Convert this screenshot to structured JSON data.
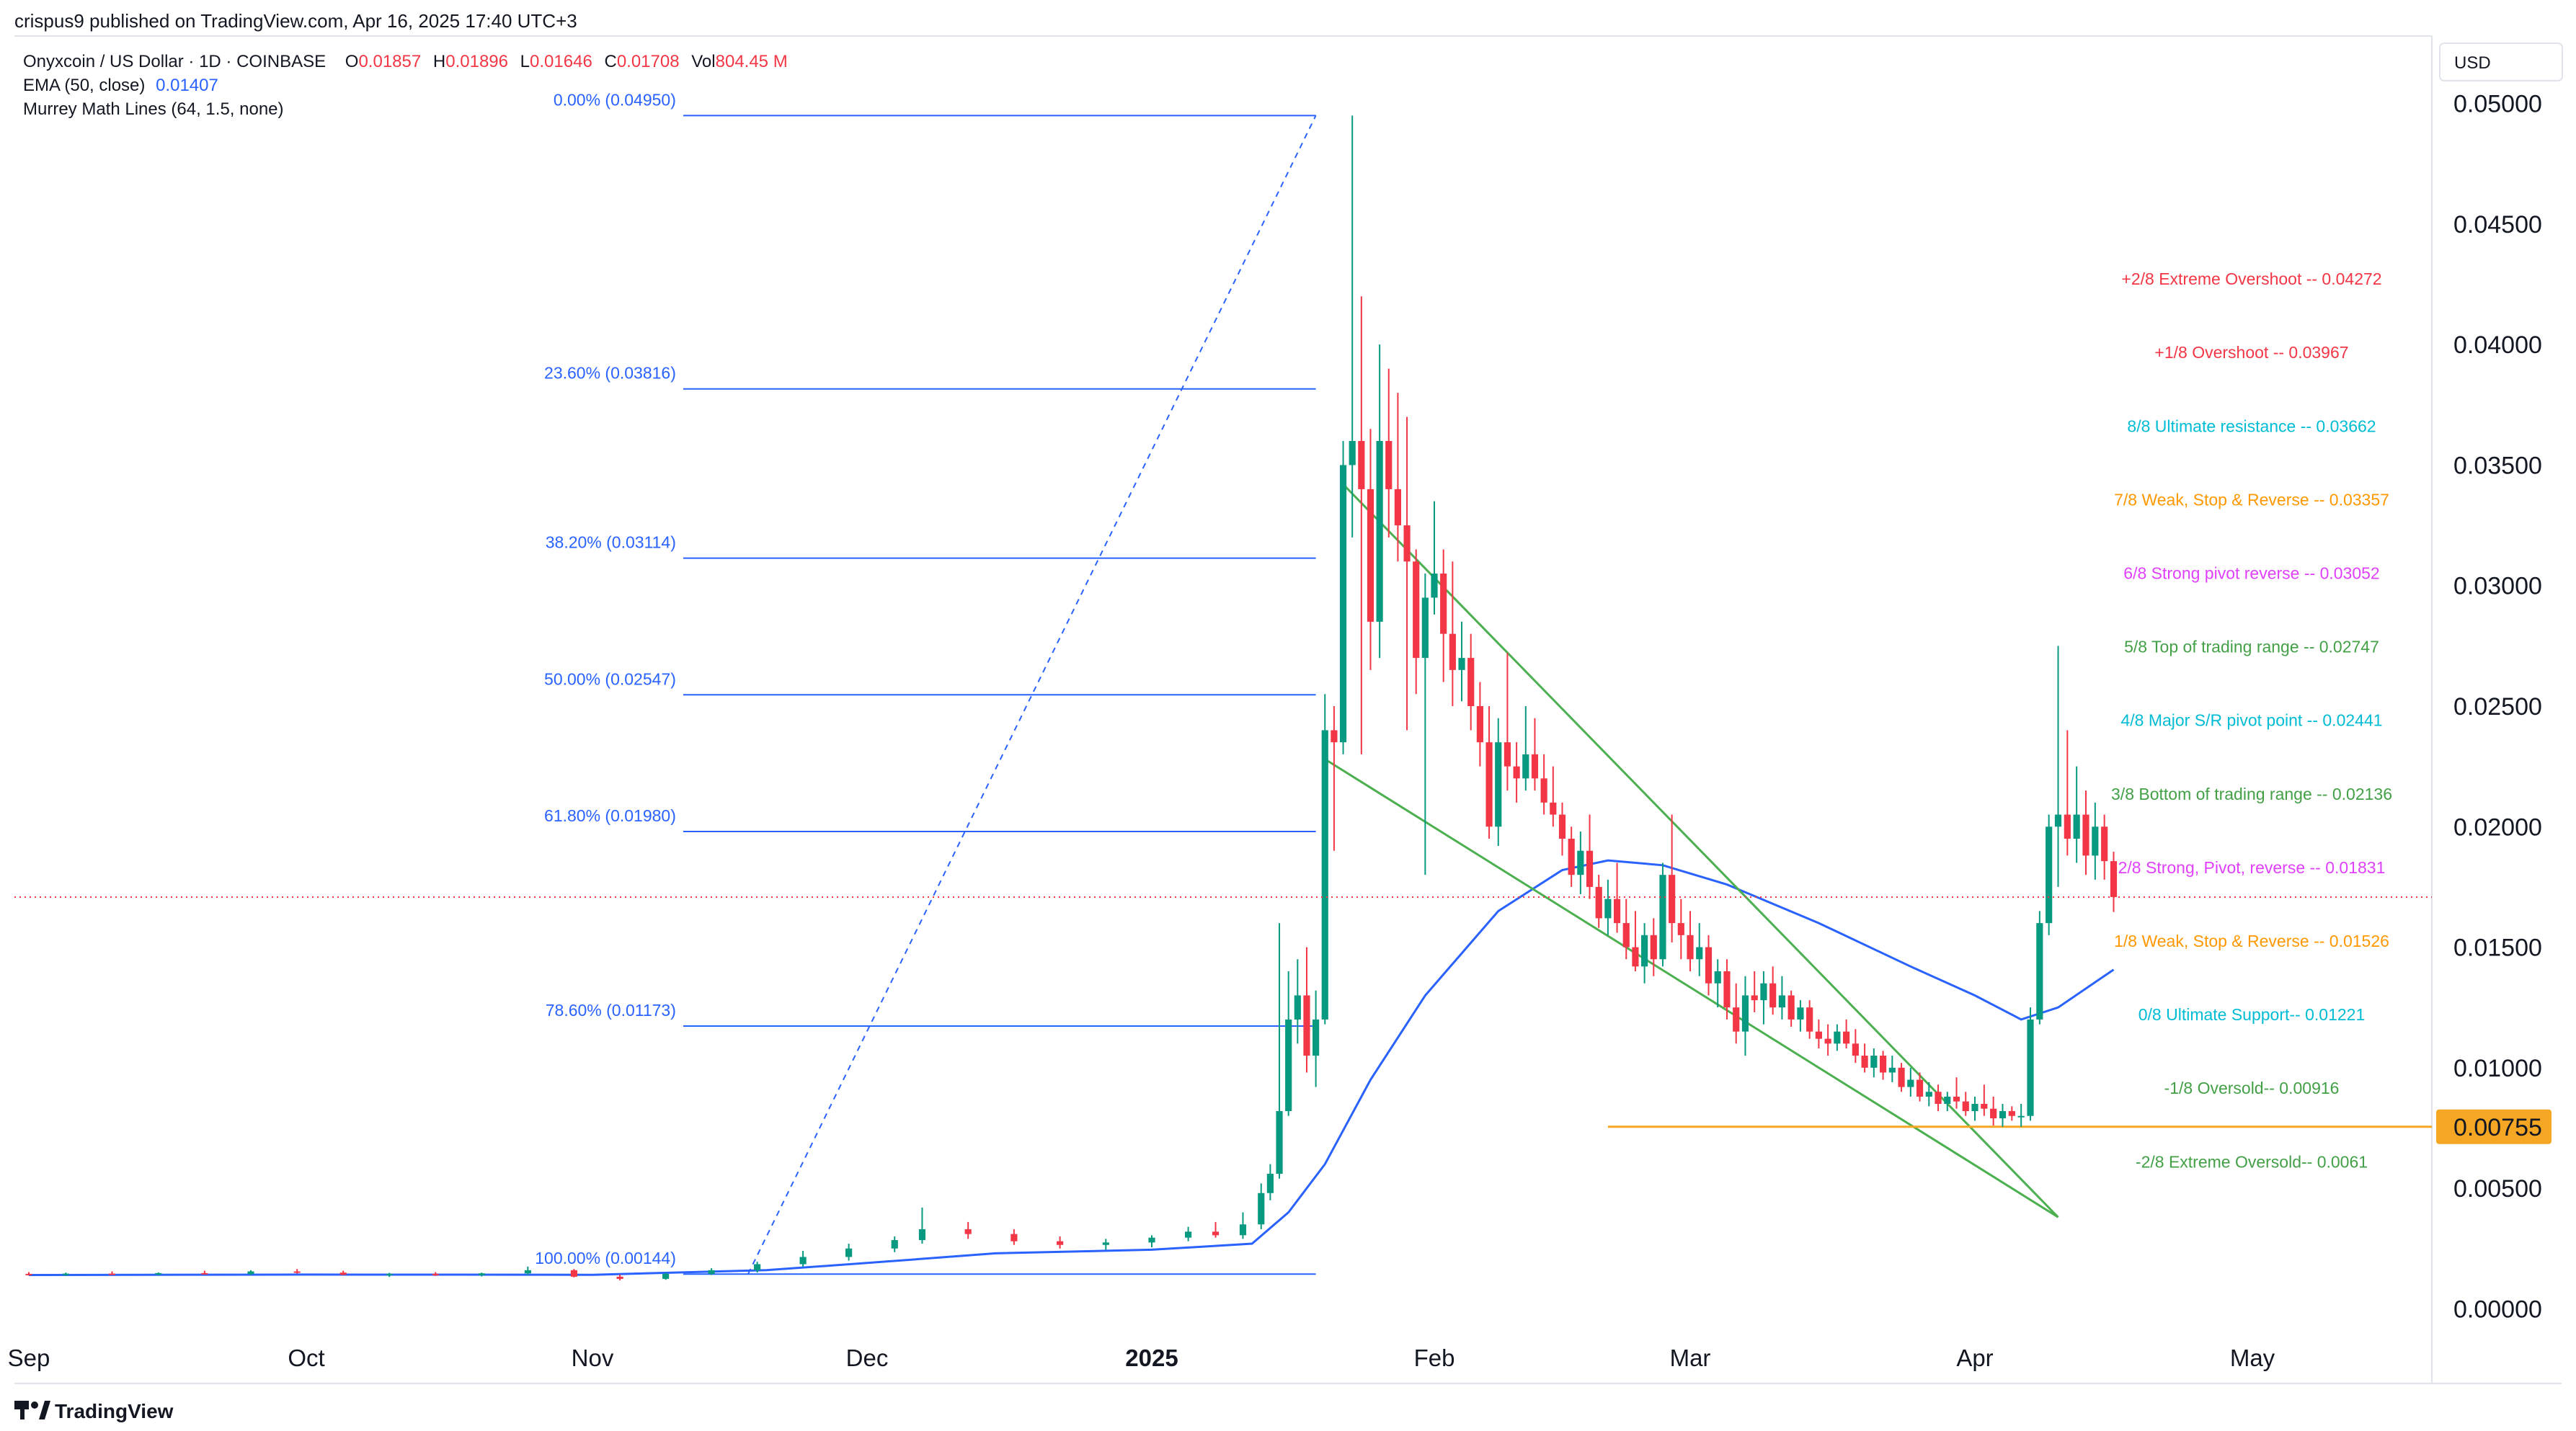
{
  "header": {
    "published_line": "crispus9 published on TradingView.com, Apr 16, 2025 17:40 UTC+3",
    "symbol": "Onyxcoin / US Dollar · 1D · COINBASE",
    "open_label": "O",
    "open": "0.01857",
    "high_label": "H",
    "high": "0.01896",
    "low_label": "L",
    "low": "0.01646",
    "close_label": "C",
    "close": "0.01708",
    "vol_label": "Vol",
    "volume": "804.45 M",
    "ema_label": "EMA (50, close)",
    "ema_value": "0.01407",
    "murrey_label": "Murrey Math Lines (64, 1.5, none)"
  },
  "currency_button": "USD",
  "footer": {
    "brand": "TradingView",
    "brand_icon": "tradingview-logo-icon"
  },
  "colors": {
    "up": "#089981",
    "down": "#f23645",
    "ema": "#2962ff",
    "fib": "#2962ff",
    "wedge": "#4caf50",
    "support": "#f5a623",
    "price_line": "#f23645"
  },
  "chart_data": {
    "type": "candlestick",
    "ylim": [
      -0.0025,
      0.0525
    ],
    "y_ticks": [
      "0.00000",
      "0.00500",
      "0.01000",
      "0.01500",
      "0.02000",
      "0.02500",
      "0.03000",
      "0.03500",
      "0.04000",
      "0.04500",
      "0.05000"
    ],
    "x_ticks": [
      "Sep",
      "Oct",
      "Nov",
      "Dec",
      "2025",
      "Feb",
      "Mar",
      "Apr",
      "May"
    ],
    "x_tick_dates": [
      "2024-09-01",
      "2024-10-01",
      "2024-11-01",
      "2024-12-01",
      "2025-01-01",
      "2025-02-01",
      "2025-03-01",
      "2025-04-01",
      "2025-05-01"
    ],
    "current_price": 0.01708,
    "highlighted_price": {
      "value": 0.00755,
      "label": "0.00755"
    },
    "fib_retracement": [
      {
        "label": "0.00% (0.04950)",
        "value": 0.0495
      },
      {
        "label": "23.60% (0.03816)",
        "value": 0.03816
      },
      {
        "label": "38.20% (0.03114)",
        "value": 0.03114
      },
      {
        "label": "50.00% (0.02547)",
        "value": 0.02547
      },
      {
        "label": "61.80% (0.01980)",
        "value": 0.0198
      },
      {
        "label": "78.60% (0.01173)",
        "value": 0.01173
      },
      {
        "label": "100.00% (0.00144)",
        "value": 0.00144
      }
    ],
    "fib_range": {
      "start_date": "2024-11-18",
      "end_date": "2025-01-19"
    },
    "murrey_lines": [
      {
        "label": "+2/8 Extreme Overshoot --  0.04272",
        "value": 0.04272,
        "color": "#f23645"
      },
      {
        "label": "+1/8 Overshoot --  0.03967",
        "value": 0.03967,
        "color": "#f23645"
      },
      {
        "label": "8/8 Ultimate resistance --  0.03662",
        "value": 0.03662,
        "color": "#00bcd4"
      },
      {
        "label": "7/8 Weak, Stop & Reverse --  0.03357",
        "value": 0.03357,
        "color": "#ff9800"
      },
      {
        "label": "6/8 Strong pivot reverse --  0.03052",
        "value": 0.03052,
        "color": "#e040fb"
      },
      {
        "label": "5/8 Top of trading range --  0.02747",
        "value": 0.02747,
        "color": "#43a047"
      },
      {
        "label": "4/8 Major S/R pivot point --  0.02441",
        "value": 0.02441,
        "color": "#00bcd4"
      },
      {
        "label": "3/8 Bottom of trading range --  0.02136",
        "value": 0.02136,
        "color": "#43a047"
      },
      {
        "label": "2/8 Strong, Pivot, reverse --  0.01831",
        "value": 0.01831,
        "color": "#e040fb"
      },
      {
        "label": "1/8 Weak, Stop & Reverse --  0.01526",
        "value": 0.01526,
        "color": "#ff9800"
      },
      {
        "label": "0/8 Ultimate Support--  0.01221",
        "value": 0.01221,
        "color": "#00bcd4"
      },
      {
        "label": "-1/8 Oversold--  0.00916",
        "value": 0.00916,
        "color": "#43a047"
      },
      {
        "label": "-2/8 Extreme Oversold--  0.0061",
        "value": 0.0061,
        "color": "#43a047"
      }
    ],
    "wedge_lines": [
      {
        "from": [
          "2025-01-22",
          0.0342
        ],
        "to": [
          "2025-04-10",
          0.0038
        ]
      },
      {
        "from": [
          "2025-01-20",
          0.0228
        ],
        "to": [
          "2025-04-10",
          0.0038
        ]
      }
    ],
    "support_line": {
      "from_date": "2025-02-20",
      "to_date": "2025-05-20",
      "value": 0.00755
    },
    "candles": [
      [
        "2024-09-01",
        0.00145,
        0.00152,
        0.00138,
        0.00142
      ],
      [
        "2024-09-05",
        0.00142,
        0.0015,
        0.00136,
        0.00146
      ],
      [
        "2024-09-10",
        0.00146,
        0.00155,
        0.0014,
        0.00143
      ],
      [
        "2024-09-15",
        0.00143,
        0.00151,
        0.00137,
        0.00148
      ],
      [
        "2024-09-20",
        0.00148,
        0.00158,
        0.00142,
        0.00144
      ],
      [
        "2024-09-25",
        0.00144,
        0.0016,
        0.0014,
        0.00155
      ],
      [
        "2024-09-30",
        0.00155,
        0.00165,
        0.00146,
        0.0015
      ],
      [
        "2024-10-05",
        0.0015,
        0.00158,
        0.00139,
        0.00141
      ],
      [
        "2024-10-10",
        0.00141,
        0.00149,
        0.00132,
        0.00145
      ],
      [
        "2024-10-15",
        0.00145,
        0.00152,
        0.00136,
        0.00139
      ],
      [
        "2024-10-20",
        0.00139,
        0.0015,
        0.00134,
        0.00147
      ],
      [
        "2024-10-25",
        0.00147,
        0.00175,
        0.0014,
        0.0016
      ],
      [
        "2024-10-30",
        0.0016,
        0.00165,
        0.0013,
        0.00133
      ],
      [
        "2024-11-04",
        0.00133,
        0.00142,
        0.00118,
        0.00124
      ],
      [
        "2024-11-09",
        0.00124,
        0.0015,
        0.0012,
        0.00145
      ],
      [
        "2024-11-14",
        0.00145,
        0.00168,
        0.0014,
        0.0016
      ],
      [
        "2024-11-19",
        0.0016,
        0.00195,
        0.0015,
        0.00185
      ],
      [
        "2024-11-24",
        0.00185,
        0.0024,
        0.00175,
        0.00215
      ],
      [
        "2024-11-29",
        0.00215,
        0.0027,
        0.002,
        0.0025
      ],
      [
        "2024-12-04",
        0.0025,
        0.003,
        0.00235,
        0.00285
      ],
      [
        "2024-12-07",
        0.00285,
        0.0042,
        0.0027,
        0.0033
      ],
      [
        "2024-12-12",
        0.0033,
        0.0036,
        0.0029,
        0.0031
      ],
      [
        "2024-12-17",
        0.0031,
        0.0033,
        0.00265,
        0.0028
      ],
      [
        "2024-12-22",
        0.0028,
        0.003,
        0.0025,
        0.00265
      ],
      [
        "2024-12-27",
        0.00265,
        0.0029,
        0.00245,
        0.00275
      ],
      [
        "2025-01-01",
        0.00275,
        0.00305,
        0.00255,
        0.00295
      ],
      [
        "2025-01-05",
        0.00295,
        0.0034,
        0.0028,
        0.0032
      ],
      [
        "2025-01-08",
        0.0032,
        0.0036,
        0.00295,
        0.00305
      ],
      [
        "2025-01-11",
        0.00305,
        0.004,
        0.0029,
        0.0035
      ],
      [
        "2025-01-13",
        0.0035,
        0.0052,
        0.0033,
        0.0048
      ],
      [
        "2025-01-14",
        0.0048,
        0.006,
        0.0045,
        0.0056
      ],
      [
        "2025-01-15",
        0.0056,
        0.016,
        0.0054,
        0.0082
      ],
      [
        "2025-01-16",
        0.0082,
        0.014,
        0.008,
        0.012
      ],
      [
        "2025-01-17",
        0.012,
        0.0145,
        0.011,
        0.013
      ],
      [
        "2025-01-18",
        0.013,
        0.015,
        0.0098,
        0.0105
      ],
      [
        "2025-01-19",
        0.0105,
        0.0132,
        0.0092,
        0.012
      ],
      [
        "2025-01-20",
        0.012,
        0.0255,
        0.0118,
        0.024
      ],
      [
        "2025-01-21",
        0.024,
        0.025,
        0.019,
        0.0235
      ],
      [
        "2025-01-22",
        0.0235,
        0.036,
        0.023,
        0.035
      ],
      [
        "2025-01-23",
        0.035,
        0.0495,
        0.032,
        0.036
      ],
      [
        "2025-01-24",
        0.036,
        0.042,
        0.023,
        0.034
      ],
      [
        "2025-01-25",
        0.034,
        0.0365,
        0.0265,
        0.0285
      ],
      [
        "2025-01-26",
        0.0285,
        0.04,
        0.027,
        0.036
      ],
      [
        "2025-01-27",
        0.036,
        0.039,
        0.032,
        0.034
      ],
      [
        "2025-01-28",
        0.034,
        0.038,
        0.031,
        0.0325
      ],
      [
        "2025-01-29",
        0.0325,
        0.037,
        0.024,
        0.031
      ],
      [
        "2025-01-30",
        0.031,
        0.0315,
        0.0255,
        0.027
      ],
      [
        "2025-01-31",
        0.027,
        0.0305,
        0.018,
        0.0295
      ],
      [
        "2025-02-01",
        0.0295,
        0.0335,
        0.0288,
        0.0305
      ],
      [
        "2025-02-02",
        0.0305,
        0.0315,
        0.026,
        0.028
      ],
      [
        "2025-02-03",
        0.028,
        0.031,
        0.025,
        0.0265
      ],
      [
        "2025-02-04",
        0.0265,
        0.0285,
        0.0252,
        0.027
      ],
      [
        "2025-02-05",
        0.027,
        0.028,
        0.024,
        0.025
      ],
      [
        "2025-02-06",
        0.025,
        0.026,
        0.0225,
        0.0235
      ],
      [
        "2025-02-07",
        0.0235,
        0.025,
        0.0195,
        0.02
      ],
      [
        "2025-02-08",
        0.02,
        0.0245,
        0.0192,
        0.0235
      ],
      [
        "2025-02-09",
        0.0235,
        0.0272,
        0.0215,
        0.0225
      ],
      [
        "2025-02-10",
        0.0225,
        0.0235,
        0.021,
        0.022
      ],
      [
        "2025-02-11",
        0.022,
        0.025,
        0.0215,
        0.023
      ],
      [
        "2025-02-12",
        0.023,
        0.0245,
        0.0215,
        0.022
      ],
      [
        "2025-02-13",
        0.022,
        0.023,
        0.0205,
        0.021
      ],
      [
        "2025-02-14",
        0.021,
        0.0225,
        0.02,
        0.0205
      ],
      [
        "2025-02-15",
        0.0205,
        0.021,
        0.0188,
        0.0195
      ],
      [
        "2025-02-16",
        0.0195,
        0.02,
        0.0175,
        0.018
      ],
      [
        "2025-02-17",
        0.018,
        0.0198,
        0.0172,
        0.019
      ],
      [
        "2025-02-18",
        0.019,
        0.0205,
        0.017,
        0.0175
      ],
      [
        "2025-02-19",
        0.0175,
        0.018,
        0.0158,
        0.0162
      ],
      [
        "2025-02-20",
        0.0162,
        0.0178,
        0.0155,
        0.017
      ],
      [
        "2025-02-21",
        0.017,
        0.0185,
        0.0156,
        0.016
      ],
      [
        "2025-02-22",
        0.016,
        0.017,
        0.0145,
        0.015
      ],
      [
        "2025-02-23",
        0.015,
        0.0165,
        0.014,
        0.0142
      ],
      [
        "2025-02-24",
        0.0142,
        0.016,
        0.0135,
        0.0155
      ],
      [
        "2025-02-25",
        0.0155,
        0.0162,
        0.0138,
        0.0145
      ],
      [
        "2025-02-26",
        0.0145,
        0.0185,
        0.0142,
        0.018
      ],
      [
        "2025-02-27",
        0.018,
        0.0205,
        0.0152,
        0.016
      ],
      [
        "2025-02-28",
        0.016,
        0.017,
        0.0145,
        0.0155
      ],
      [
        "2025-03-01",
        0.0155,
        0.0165,
        0.014,
        0.0145
      ],
      [
        "2025-03-02",
        0.0145,
        0.016,
        0.0138,
        0.015
      ],
      [
        "2025-03-03",
        0.015,
        0.0155,
        0.013,
        0.0135
      ],
      [
        "2025-03-04",
        0.0135,
        0.0145,
        0.0125,
        0.014
      ],
      [
        "2025-03-05",
        0.014,
        0.0145,
        0.012,
        0.0125
      ],
      [
        "2025-03-06",
        0.0125,
        0.0135,
        0.011,
        0.0115
      ],
      [
        "2025-03-07",
        0.0115,
        0.0138,
        0.0105,
        0.013
      ],
      [
        "2025-03-08",
        0.013,
        0.014,
        0.0123,
        0.0128
      ],
      [
        "2025-03-09",
        0.0128,
        0.014,
        0.0118,
        0.0135
      ],
      [
        "2025-03-10",
        0.0135,
        0.0142,
        0.0122,
        0.0125
      ],
      [
        "2025-03-11",
        0.0125,
        0.0138,
        0.012,
        0.013
      ],
      [
        "2025-03-12",
        0.013,
        0.0132,
        0.0117,
        0.012
      ],
      [
        "2025-03-13",
        0.012,
        0.0128,
        0.0115,
        0.0125
      ],
      [
        "2025-03-14",
        0.0125,
        0.0128,
        0.0112,
        0.0115
      ],
      [
        "2025-03-15",
        0.0115,
        0.012,
        0.0108,
        0.0112
      ],
      [
        "2025-03-16",
        0.0112,
        0.0118,
        0.0105,
        0.011
      ],
      [
        "2025-03-17",
        0.011,
        0.0118,
        0.0107,
        0.0115
      ],
      [
        "2025-03-18",
        0.0115,
        0.012,
        0.0108,
        0.011
      ],
      [
        "2025-03-19",
        0.011,
        0.0116,
        0.0102,
        0.0105
      ],
      [
        "2025-03-20",
        0.0105,
        0.011,
        0.0098,
        0.01
      ],
      [
        "2025-03-21",
        0.01,
        0.0108,
        0.0096,
        0.0105
      ],
      [
        "2025-03-22",
        0.0105,
        0.0107,
        0.0095,
        0.0098
      ],
      [
        "2025-03-23",
        0.0098,
        0.0105,
        0.0094,
        0.01
      ],
      [
        "2025-03-24",
        0.01,
        0.0102,
        0.009,
        0.0092
      ],
      [
        "2025-03-25",
        0.0092,
        0.01,
        0.0088,
        0.0095
      ],
      [
        "2025-03-26",
        0.0095,
        0.0098,
        0.0086,
        0.0088
      ],
      [
        "2025-03-27",
        0.0088,
        0.0094,
        0.0084,
        0.009
      ],
      [
        "2025-03-28",
        0.009,
        0.0093,
        0.0082,
        0.0085
      ],
      [
        "2025-03-29",
        0.0085,
        0.009,
        0.0082,
        0.0088
      ],
      [
        "2025-03-30",
        0.0088,
        0.0096,
        0.0083,
        0.0086
      ],
      [
        "2025-03-31",
        0.0086,
        0.009,
        0.008,
        0.0082
      ],
      [
        "2025-04-01",
        0.0082,
        0.0088,
        0.0078,
        0.0085
      ],
      [
        "2025-04-02",
        0.0085,
        0.0093,
        0.008,
        0.0083
      ],
      [
        "2025-04-03",
        0.0083,
        0.0088,
        0.0076,
        0.0079
      ],
      [
        "2025-04-04",
        0.0079,
        0.0085,
        0.00755,
        0.0082
      ],
      [
        "2025-04-05",
        0.0082,
        0.0084,
        0.0078,
        0.008
      ],
      [
        "2025-04-06",
        0.008,
        0.0085,
        0.00755,
        0.008
      ],
      [
        "2025-04-07",
        0.008,
        0.0125,
        0.0078,
        0.012
      ],
      [
        "2025-04-08",
        0.012,
        0.0165,
        0.0118,
        0.016
      ],
      [
        "2025-04-09",
        0.016,
        0.0205,
        0.0155,
        0.02
      ],
      [
        "2025-04-10",
        0.02,
        0.0275,
        0.0175,
        0.0205
      ],
      [
        "2025-04-11",
        0.0205,
        0.024,
        0.0188,
        0.0195
      ],
      [
        "2025-04-12",
        0.0195,
        0.0225,
        0.0185,
        0.0205
      ],
      [
        "2025-04-13",
        0.0205,
        0.0215,
        0.018,
        0.0188
      ],
      [
        "2025-04-14",
        0.0188,
        0.021,
        0.0178,
        0.02
      ],
      [
        "2025-04-15",
        0.02,
        0.0205,
        0.0178,
        0.01857
      ],
      [
        "2025-04-16",
        0.01857,
        0.01896,
        0.01646,
        0.01708
      ]
    ],
    "ema": [
      [
        "2024-09-01",
        0.0014
      ],
      [
        "2024-10-01",
        0.00142
      ],
      [
        "2024-11-01",
        0.00141
      ],
      [
        "2024-11-20",
        0.0016
      ],
      [
        "2024-12-01",
        0.0019
      ],
      [
        "2024-12-15",
        0.0023
      ],
      [
        "2025-01-01",
        0.00245
      ],
      [
        "2025-01-12",
        0.0027
      ],
      [
        "2025-01-16",
        0.004
      ],
      [
        "2025-01-20",
        0.006
      ],
      [
        "2025-01-25",
        0.0095
      ],
      [
        "2025-01-31",
        0.013
      ],
      [
        "2025-02-08",
        0.0165
      ],
      [
        "2025-02-15",
        0.0182
      ],
      [
        "2025-02-20",
        0.0186
      ],
      [
        "2025-02-26",
        0.0184
      ],
      [
        "2025-03-05",
        0.0176
      ],
      [
        "2025-03-15",
        0.016
      ],
      [
        "2025-03-25",
        0.0142
      ],
      [
        "2025-04-01",
        0.013
      ],
      [
        "2025-04-06",
        0.012
      ],
      [
        "2025-04-10",
        0.0125
      ],
      [
        "2025-04-16",
        0.01407
      ]
    ]
  }
}
